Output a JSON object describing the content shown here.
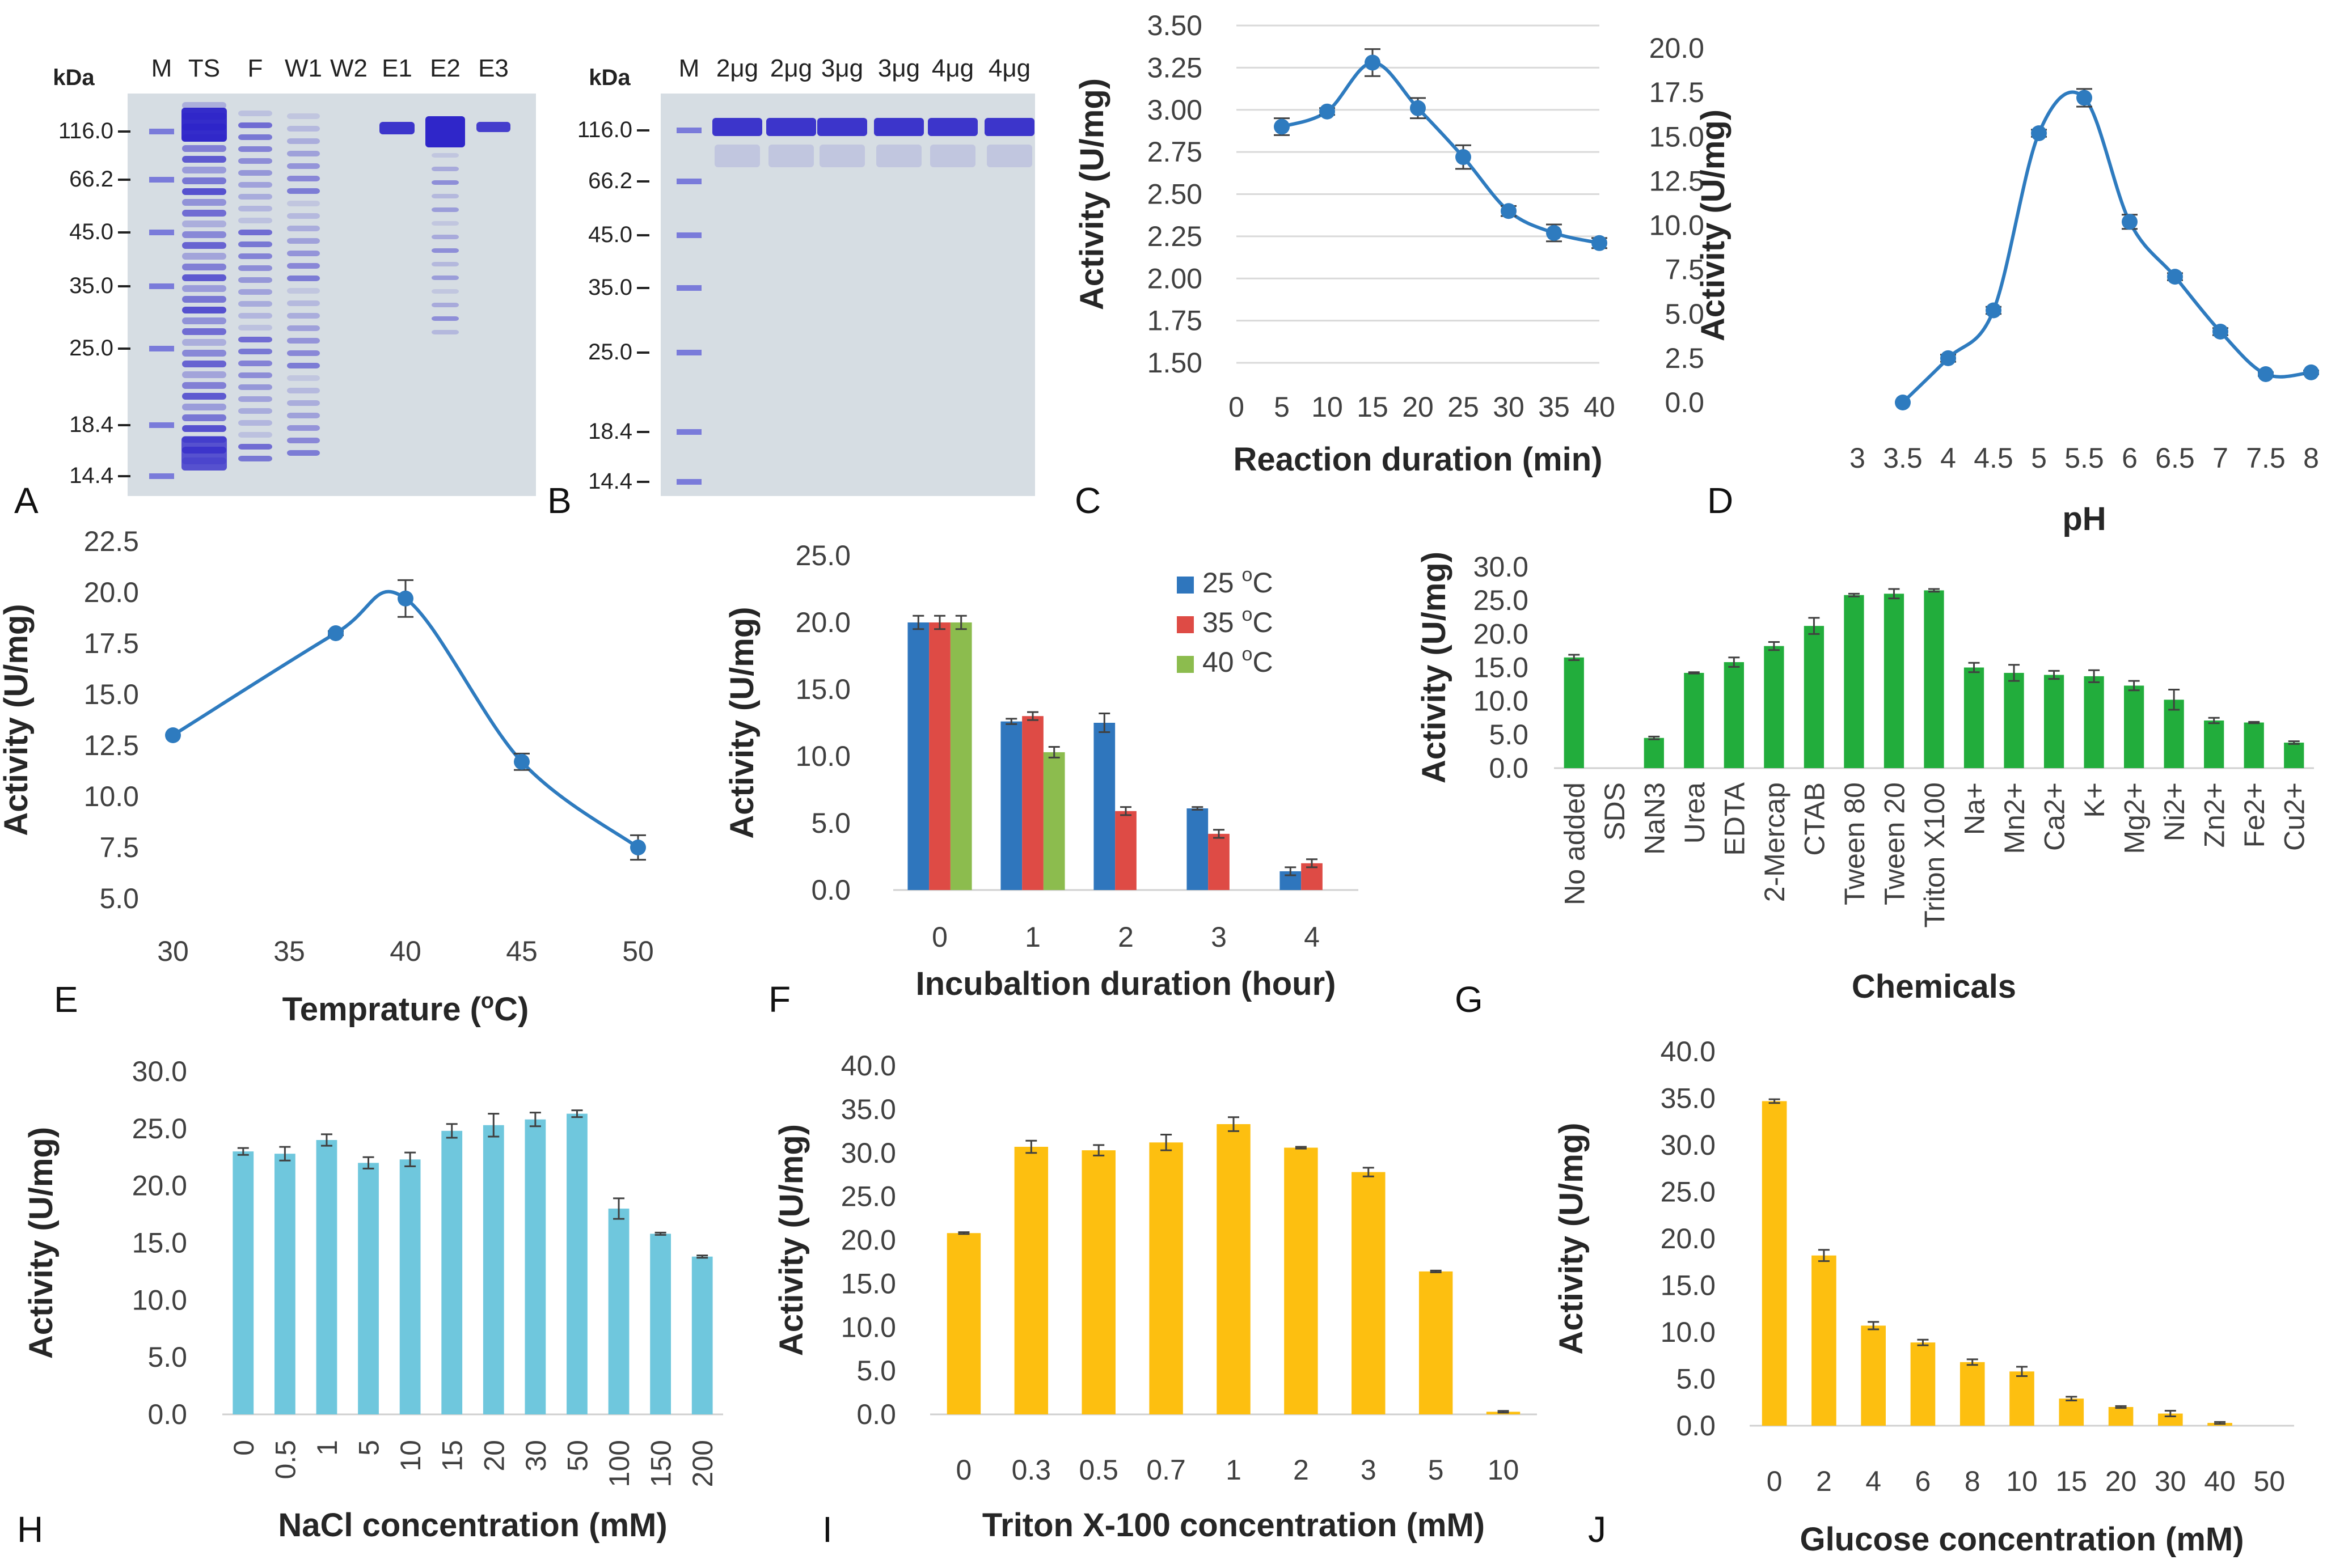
{
  "colors": {
    "line": "#2e7bbf",
    "blue": "#2f76bd",
    "red": "#de4b45",
    "green": "#8cbc4e",
    "bright_green": "#22ad3c",
    "cyan": "#6fc7dd",
    "yellow": "#fdbf10",
    "gel_bg": "#d6dde3",
    "band": "#2b22c8",
    "grid": "#d9d9d9",
    "errbar": "#404040"
  },
  "gels": {
    "A": {
      "panel_label": "A",
      "kda_label": "kDa",
      "lanes": [
        "M",
        "TS",
        "F",
        "W1",
        "W2",
        "E1",
        "E2",
        "E3"
      ],
      "markers": [
        "116.0",
        "66.2",
        "45.0",
        "35.0",
        "25.0",
        "18.4",
        "14.4"
      ]
    },
    "B": {
      "panel_label": "B",
      "kda_label": "kDa",
      "lanes": [
        "M",
        "2μg",
        "2μg",
        "3μg",
        "3μg",
        "4μg",
        "4μg"
      ],
      "markers": [
        "116.0",
        "66.2",
        "45.0",
        "35.0",
        "25.0",
        "18.4",
        "14.4"
      ]
    }
  },
  "chart_data": [
    {
      "id": "C",
      "panel_label": "C",
      "type": "line",
      "xlabel": "Reaction duration  (min)",
      "ylabel": "Activity (U/mg)",
      "x": [
        5,
        10,
        15,
        20,
        25,
        30,
        35,
        40
      ],
      "values": [
        2.9,
        2.99,
        3.28,
        3.01,
        2.72,
        2.4,
        2.27,
        2.21
      ],
      "errors": [
        0.05,
        0.02,
        0.08,
        0.06,
        0.07,
        0.03,
        0.05,
        0.03
      ],
      "xticks": [
        "0",
        "5",
        "10",
        "15",
        "20",
        "25",
        "30",
        "35",
        "40"
      ],
      "xlim": [
        0,
        40
      ],
      "ylim": [
        1.5,
        3.5
      ],
      "ystep": 0.25,
      "ydecimals": 2,
      "grid": true
    },
    {
      "id": "D",
      "panel_label": "D",
      "type": "line",
      "xlabel": "pH",
      "ylabel": "Activity (U/mg)",
      "x": [
        3.5,
        4,
        4.5,
        5,
        5.5,
        6,
        6.5,
        7,
        7.5,
        8
      ],
      "values": [
        0.0,
        2.5,
        5.2,
        15.2,
        17.2,
        10.2,
        7.1,
        4.0,
        1.6,
        1.7
      ],
      "errors": [
        0,
        0.2,
        0.2,
        0.2,
        0.5,
        0.4,
        0.2,
        0.2,
        0.1,
        0.1
      ],
      "xticks": [
        "3",
        "3.5",
        "4",
        "4.5",
        "5",
        "5.5",
        "6",
        "6.5",
        "7",
        "7.5",
        "8"
      ],
      "xlim": [
        3,
        8
      ],
      "ylim": [
        0,
        20
      ],
      "ystep": 2.5,
      "ydecimals": 1,
      "grid": false
    },
    {
      "id": "E",
      "panel_label": "E",
      "type": "line",
      "xlabel": "Temprature (",
      "xlabel_sup": "o",
      "xlabel_tail": "C)",
      "ylabel": "Activity (U/mg)",
      "x": [
        30,
        37,
        40,
        45,
        50
      ],
      "values": [
        13.0,
        18.0,
        19.7,
        11.7,
        7.5
      ],
      "errors": [
        0,
        0.1,
        0.9,
        0.4,
        0.6
      ],
      "xticks": [
        "30",
        "35",
        "40",
        "45",
        "50"
      ],
      "xlim": [
        30,
        50
      ],
      "ylim": [
        5,
        22.5
      ],
      "ystep": 2.5,
      "ydecimals": 1,
      "grid": false
    },
    {
      "id": "F",
      "panel_label": "F",
      "type": "bar",
      "xlabel": "Incubaltion duration (hour)",
      "ylabel": "Activity (U/mg)",
      "categories": [
        "0",
        "1",
        "2",
        "3",
        "4"
      ],
      "series": [
        {
          "name": "25 oC",
          "values": [
            20.0,
            12.6,
            12.5,
            6.1,
            1.4
          ],
          "errors": [
            0.5,
            0.2,
            0.7,
            0.1,
            0.3
          ]
        },
        {
          "name": "35 oC",
          "values": [
            20.0,
            13.0,
            5.9,
            4.2,
            2.0
          ],
          "errors": [
            0.5,
            0.3,
            0.3,
            0.3,
            0.3
          ]
        },
        {
          "name": "40 oC",
          "values": [
            20.0,
            10.3,
            0,
            0,
            0
          ],
          "errors": [
            0.5,
            0.4,
            0,
            0,
            0
          ]
        }
      ],
      "legend": [
        "25 ",
        "35 ",
        "40 "
      ],
      "legend_unit_sup": "o",
      "legend_unit": "C",
      "ylim": [
        0,
        25
      ],
      "ystep": 5,
      "ydecimals": 1
    },
    {
      "id": "G",
      "panel_label": "G",
      "type": "bar",
      "xlabel": "Chemicals",
      "ylabel": "Activity (U/mg)",
      "categories": [
        "No added",
        "SDS",
        "NaN3",
        "Urea",
        "EDTA",
        "2-Mercap",
        "CTAB",
        "Tween 80",
        "Tween 20",
        "Triton X100",
        "Na+",
        "Mn2+",
        "Ca2+",
        "K+",
        "Mg2+",
        "Ni2+",
        "Zn2+",
        "Fe2+",
        "Cu2+"
      ],
      "values": [
        16.5,
        0,
        4.5,
        14.2,
        15.8,
        18.2,
        21.2,
        25.8,
        26.0,
        26.5,
        15.0,
        14.2,
        13.9,
        13.7,
        12.3,
        10.2,
        7.1,
        6.8,
        3.8
      ],
      "errors": [
        0.4,
        0,
        0.2,
        0.1,
        0.7,
        0.6,
        1.2,
        0.2,
        0.7,
        0.2,
        0.7,
        1.2,
        0.6,
        0.9,
        0.7,
        1.5,
        0.4,
        0.1,
        0.2
      ],
      "ylim": [
        0,
        30
      ],
      "ystep": 5,
      "ydecimals": 1
    },
    {
      "id": "H",
      "panel_label": "H",
      "type": "bar",
      "xlabel": "NaCl concentration (mM)",
      "ylabel": "Activity (U/mg)",
      "categories": [
        "0",
        "0.5",
        "1",
        "5",
        "10",
        "15",
        "20",
        "30",
        "50",
        "100",
        "150",
        "200"
      ],
      "values": [
        23.0,
        22.8,
        24.0,
        22.0,
        22.3,
        24.8,
        25.3,
        25.8,
        26.3,
        18.0,
        15.8,
        13.8
      ],
      "errors": [
        0.3,
        0.6,
        0.5,
        0.5,
        0.6,
        0.6,
        1.0,
        0.6,
        0.3,
        0.9,
        0.1,
        0.1
      ],
      "ylim": [
        0,
        30
      ],
      "ystep": 5,
      "ydecimals": 1
    },
    {
      "id": "I",
      "panel_label": "I",
      "type": "bar",
      "xlabel": "Triton X-100 concentration (mM)",
      "ylabel": "Activity (U/mg)",
      "categories": [
        "0",
        "0.3",
        "0.5",
        "0.7",
        "1",
        "2",
        "3",
        "5",
        "10"
      ],
      "values": [
        20.8,
        30.7,
        30.3,
        31.2,
        33.3,
        30.6,
        27.8,
        16.4,
        0.3
      ],
      "errors": [
        0.1,
        0.7,
        0.6,
        0.9,
        0.8,
        0.1,
        0.5,
        0.1,
        0.1
      ],
      "ylim": [
        0,
        40
      ],
      "ystep": 5,
      "ydecimals": 1
    },
    {
      "id": "J",
      "panel_label": "J",
      "type": "bar",
      "xlabel": "Glucose concentration (mM)",
      "ylabel": "Activity (U/mg)",
      "categories": [
        "0",
        "2",
        "4",
        "6",
        "8",
        "10",
        "15",
        "20",
        "30",
        "40",
        "50"
      ],
      "values": [
        34.7,
        18.2,
        10.7,
        8.9,
        6.8,
        5.8,
        2.9,
        2.0,
        1.3,
        0.3,
        0
      ],
      "errors": [
        0.2,
        0.6,
        0.4,
        0.3,
        0.3,
        0.5,
        0.2,
        0.1,
        0.3,
        0.1,
        0
      ],
      "ylim": [
        0,
        40
      ],
      "ystep": 5,
      "ydecimals": 1
    }
  ]
}
